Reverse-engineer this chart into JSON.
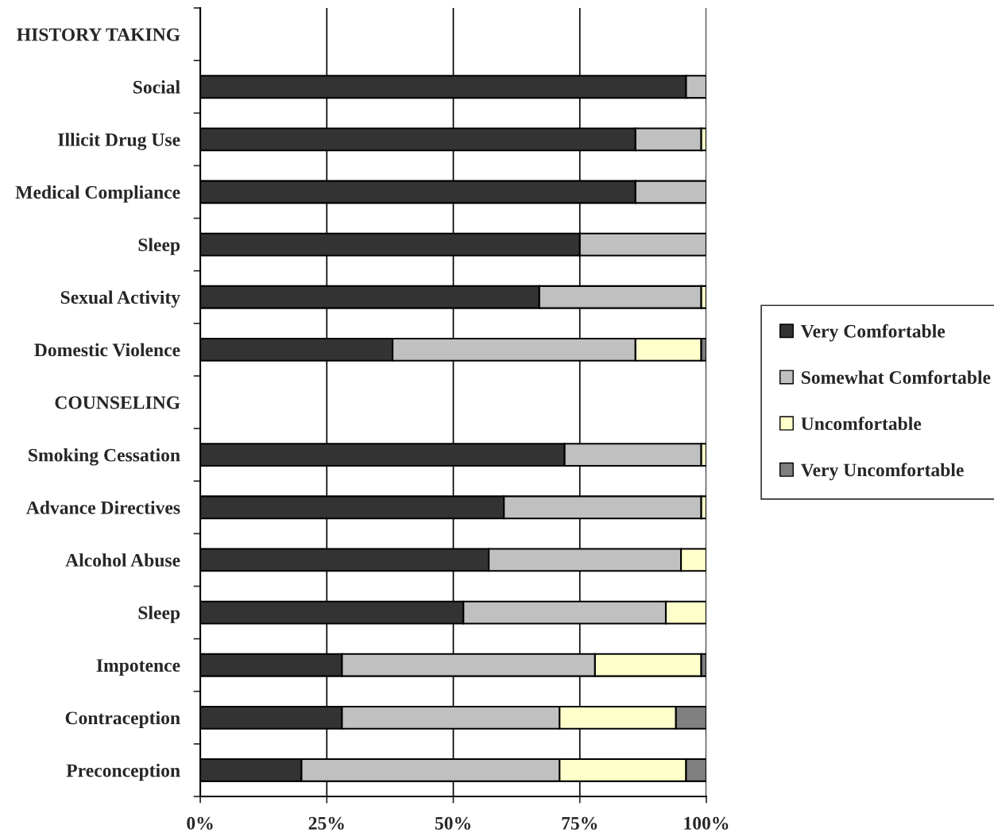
{
  "chart_data": {
    "type": "bar",
    "orientation": "horizontal",
    "stacked": true,
    "categories": [
      "HISTORY TAKING",
      "Social",
      "Illicit Drug Use",
      "Medical Compliance",
      "Sleep",
      "Sexual Activity",
      "Domestic Violence",
      "COUNSELING",
      "Smoking Cessation",
      "Advance Directives",
      "Alcohol Abuse",
      "Sleep",
      "Impotence",
      "Contraception",
      "Preconception"
    ],
    "series": [
      {
        "name": "Very Comfortable",
        "color": "#333333",
        "values": [
          null,
          96,
          86,
          86,
          75,
          67,
          38,
          null,
          72,
          60,
          57,
          52,
          28,
          28,
          20
        ]
      },
      {
        "name": "Somewhat Comfortable",
        "color": "#c0c0c0",
        "values": [
          null,
          4,
          13,
          14,
          25,
          32,
          48,
          null,
          27,
          39,
          38,
          40,
          50,
          43,
          51
        ]
      },
      {
        "name": "Uncomfortable",
        "color": "#ffffcc",
        "values": [
          null,
          0,
          1,
          0,
          0,
          1,
          13,
          null,
          1,
          1,
          5,
          8,
          21,
          23,
          25
        ]
      },
      {
        "name": "Very Uncomfortable",
        "color": "#808080",
        "values": [
          null,
          0,
          0,
          0,
          0,
          0,
          1,
          null,
          0,
          0,
          0,
          0,
          1,
          6,
          4
        ]
      }
    ],
    "xlim": [
      0,
      100
    ],
    "xticks": [
      {
        "value": 0,
        "label": "0%"
      },
      {
        "value": 25,
        "label": "25%"
      },
      {
        "value": 50,
        "label": "50%"
      },
      {
        "value": 75,
        "label": "75%"
      },
      {
        "value": 100,
        "label": "100%"
      }
    ],
    "grid": "x",
    "legend": "right"
  }
}
